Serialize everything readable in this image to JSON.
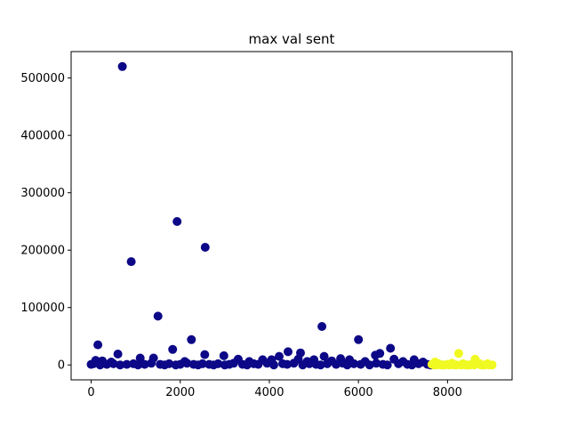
{
  "chart_data": {
    "type": "scatter",
    "title": "max val sent",
    "xlabel": "",
    "ylabel": "",
    "xlim": [
      -450,
      9450
    ],
    "ylim": [
      -26000,
      546000
    ],
    "x_ticks": [
      0,
      2000,
      4000,
      6000,
      8000
    ],
    "y_ticks": [
      0,
      100000,
      200000,
      300000,
      400000,
      500000
    ],
    "grid": false,
    "legend": "none",
    "colors": {
      "class_0": "#0d0887",
      "class_1": "#f0f921"
    },
    "series": [
      {
        "color": "#0d0887",
        "points": [
          [
            700,
            520000
          ],
          [
            1930,
            250000
          ],
          [
            2560,
            205000
          ],
          [
            900,
            180000
          ],
          [
            1500,
            85000
          ],
          [
            5180,
            67000
          ],
          [
            2250,
            44000
          ],
          [
            6000,
            44000
          ],
          [
            150,
            35000
          ],
          [
            6720,
            29000
          ],
          [
            1830,
            27000
          ],
          [
            4420,
            23000
          ],
          [
            4700,
            21000
          ],
          [
            6480,
            20000
          ],
          [
            600,
            19000
          ],
          [
            2550,
            18000
          ],
          [
            6380,
            17000
          ],
          [
            2980,
            16000
          ],
          [
            5230,
            15000
          ],
          [
            4220,
            15000
          ],
          [
            1400,
            12000
          ],
          [
            1100,
            12000
          ],
          [
            5600,
            11000
          ],
          [
            3300,
            10000
          ],
          [
            3850,
            9000
          ],
          [
            4050,
            9000
          ],
          [
            4650,
            10000
          ],
          [
            5000,
            9000
          ],
          [
            5800,
            9000
          ],
          [
            6800,
            10000
          ],
          [
            7250,
            9000
          ],
          [
            100,
            8000
          ],
          [
            250,
            7000
          ],
          [
            450,
            5000
          ],
          [
            2100,
            6000
          ],
          [
            3550,
            6000
          ],
          [
            4850,
            6000
          ],
          [
            5400,
            7000
          ],
          [
            6150,
            6000
          ],
          [
            7000,
            6000
          ],
          [
            7450,
            5000
          ],
          [
            0,
            1000
          ],
          [
            50,
            2000
          ],
          [
            200,
            0
          ],
          [
            350,
            1000
          ],
          [
            500,
            2000
          ],
          [
            650,
            0
          ],
          [
            800,
            1000
          ],
          [
            950,
            2000
          ],
          [
            1050,
            0
          ],
          [
            1200,
            1000
          ],
          [
            1350,
            3000
          ],
          [
            1550,
            1000
          ],
          [
            1650,
            0
          ],
          [
            1750,
            2000
          ],
          [
            1900,
            0
          ],
          [
            2000,
            1000
          ],
          [
            2150,
            3000
          ],
          [
            2300,
            1000
          ],
          [
            2400,
            0
          ],
          [
            2500,
            2000
          ],
          [
            2650,
            1000
          ],
          [
            2750,
            0
          ],
          [
            2850,
            2000
          ],
          [
            3000,
            0
          ],
          [
            3100,
            1000
          ],
          [
            3200,
            3000
          ],
          [
            3400,
            1000
          ],
          [
            3500,
            0
          ],
          [
            3650,
            2000
          ],
          [
            3750,
            1000
          ],
          [
            3950,
            3000
          ],
          [
            4100,
            0
          ],
          [
            4300,
            2000
          ],
          [
            4400,
            1000
          ],
          [
            4550,
            3000
          ],
          [
            4750,
            0
          ],
          [
            4900,
            2000
          ],
          [
            5050,
            1000
          ],
          [
            5150,
            0
          ],
          [
            5300,
            2000
          ],
          [
            5500,
            1000
          ],
          [
            5650,
            3000
          ],
          [
            5750,
            0
          ],
          [
            5900,
            2000
          ],
          [
            6050,
            1000
          ],
          [
            6250,
            0
          ],
          [
            6400,
            3000
          ],
          [
            6550,
            1000
          ],
          [
            6650,
            0
          ],
          [
            6900,
            2000
          ],
          [
            7100,
            1000
          ],
          [
            7200,
            0
          ],
          [
            7350,
            2000
          ],
          [
            7550,
            1000
          ],
          [
            7620,
            0
          ]
        ]
      },
      {
        "color": "#f0f921",
        "points": [
          [
            8250,
            20000
          ],
          [
            8620,
            10000
          ],
          [
            7720,
            5000
          ],
          [
            7650,
            1000
          ],
          [
            7700,
            0
          ],
          [
            7800,
            2000
          ],
          [
            7900,
            0
          ],
          [
            8000,
            1000
          ],
          [
            8100,
            3000
          ],
          [
            8200,
            0
          ],
          [
            8350,
            2000
          ],
          [
            8450,
            0
          ],
          [
            8550,
            1000
          ],
          [
            8700,
            3000
          ],
          [
            8800,
            0
          ],
          [
            8900,
            2000
          ],
          [
            9000,
            0
          ],
          [
            7750,
            0
          ],
          [
            7850,
            0
          ],
          [
            7950,
            0
          ],
          [
            8050,
            0
          ],
          [
            8150,
            0
          ],
          [
            8300,
            0
          ],
          [
            8400,
            0
          ],
          [
            8500,
            0
          ],
          [
            8600,
            0
          ],
          [
            8750,
            0
          ],
          [
            8850,
            0
          ],
          [
            8950,
            0
          ]
        ]
      }
    ]
  }
}
